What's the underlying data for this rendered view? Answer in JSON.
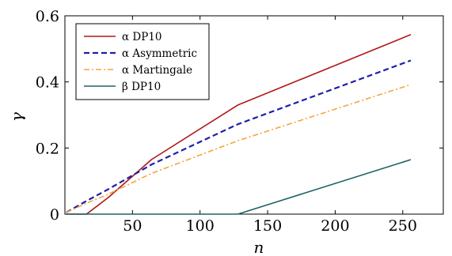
{
  "chart_data": {
    "type": "line",
    "xlabel": "n",
    "ylabel": "γ",
    "xlim": [
      0,
      280
    ],
    "ylim": [
      0,
      0.6
    ],
    "xticks": [
      50,
      100,
      150,
      200,
      250
    ],
    "yticks": [
      0,
      0.2,
      0.4,
      0.6
    ],
    "xtick_labels": [
      "50",
      "100",
      "150",
      "200",
      "250"
    ],
    "ytick_labels": [
      "0",
      "0.2",
      "0.4",
      "0.6"
    ],
    "grid": false,
    "legend_position": "top-left",
    "series": [
      {
        "name": "α DP10",
        "color": "#b01818",
        "dash": "solid",
        "x": [
          1,
          16,
          32,
          64,
          128,
          256
        ],
        "y": [
          0.0,
          0.0,
          0.05,
          0.165,
          0.33,
          0.543
        ]
      },
      {
        "name": "α Asymmetric",
        "color": "#1f1fa8",
        "dash": "dashed",
        "x": [
          1,
          16,
          32,
          64,
          128,
          256
        ],
        "y": [
          0.005,
          0.04,
          0.075,
          0.15,
          0.272,
          0.465
        ]
      },
      {
        "name": "α Martingale",
        "color": "#f4a640",
        "dash": "dashdot",
        "x": [
          1,
          16,
          32,
          64,
          128,
          256
        ],
        "y": [
          0.005,
          0.033,
          0.06,
          0.123,
          0.222,
          0.392
        ]
      },
      {
        "name": "β DP10",
        "color": "#1a6366",
        "dash": "solid",
        "x": [
          1,
          16,
          32,
          64,
          128,
          256
        ],
        "y": [
          0.0,
          0.0,
          0.0,
          0.0,
          0.0,
          0.165
        ]
      }
    ]
  }
}
